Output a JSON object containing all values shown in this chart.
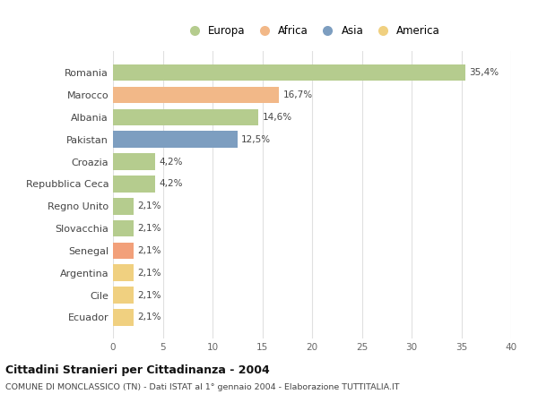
{
  "categories": [
    "Romania",
    "Marocco",
    "Albania",
    "Pakistan",
    "Croazia",
    "Repubblica Ceca",
    "Regno Unito",
    "Slovacchia",
    "Senegal",
    "Argentina",
    "Cile",
    "Ecuador"
  ],
  "values": [
    35.4,
    16.7,
    14.6,
    12.5,
    4.2,
    4.2,
    2.1,
    2.1,
    2.1,
    2.1,
    2.1,
    2.1
  ],
  "labels": [
    "35,4%",
    "16,7%",
    "14,6%",
    "12,5%",
    "4,2%",
    "4,2%",
    "2,1%",
    "2,1%",
    "2,1%",
    "2,1%",
    "2,1%",
    "2,1%"
  ],
  "bar_colors": [
    "#b5cc8e",
    "#f2b888",
    "#b5cc8e",
    "#7d9ec0",
    "#b5cc8e",
    "#b5cc8e",
    "#b5cc8e",
    "#b5cc8e",
    "#f2a07a",
    "#f0d080",
    "#f0d080",
    "#f0d080"
  ],
  "legend_labels": [
    "Europa",
    "Africa",
    "Asia",
    "America"
  ],
  "legend_colors": [
    "#b5cc8e",
    "#f2b888",
    "#7d9ec0",
    "#f0d080"
  ],
  "title_bold": "Cittadini Stranieri per Cittadinanza - 2004",
  "subtitle": "COMUNE DI MONCLASSICO (TN) - Dati ISTAT al 1° gennaio 2004 - Elaborazione TUTTITALIA.IT",
  "xlim": [
    0,
    40
  ],
  "xticks": [
    0,
    5,
    10,
    15,
    20,
    25,
    30,
    35,
    40
  ],
  "background_color": "#ffffff",
  "grid_color": "#e0e0e0",
  "bar_height": 0.75
}
